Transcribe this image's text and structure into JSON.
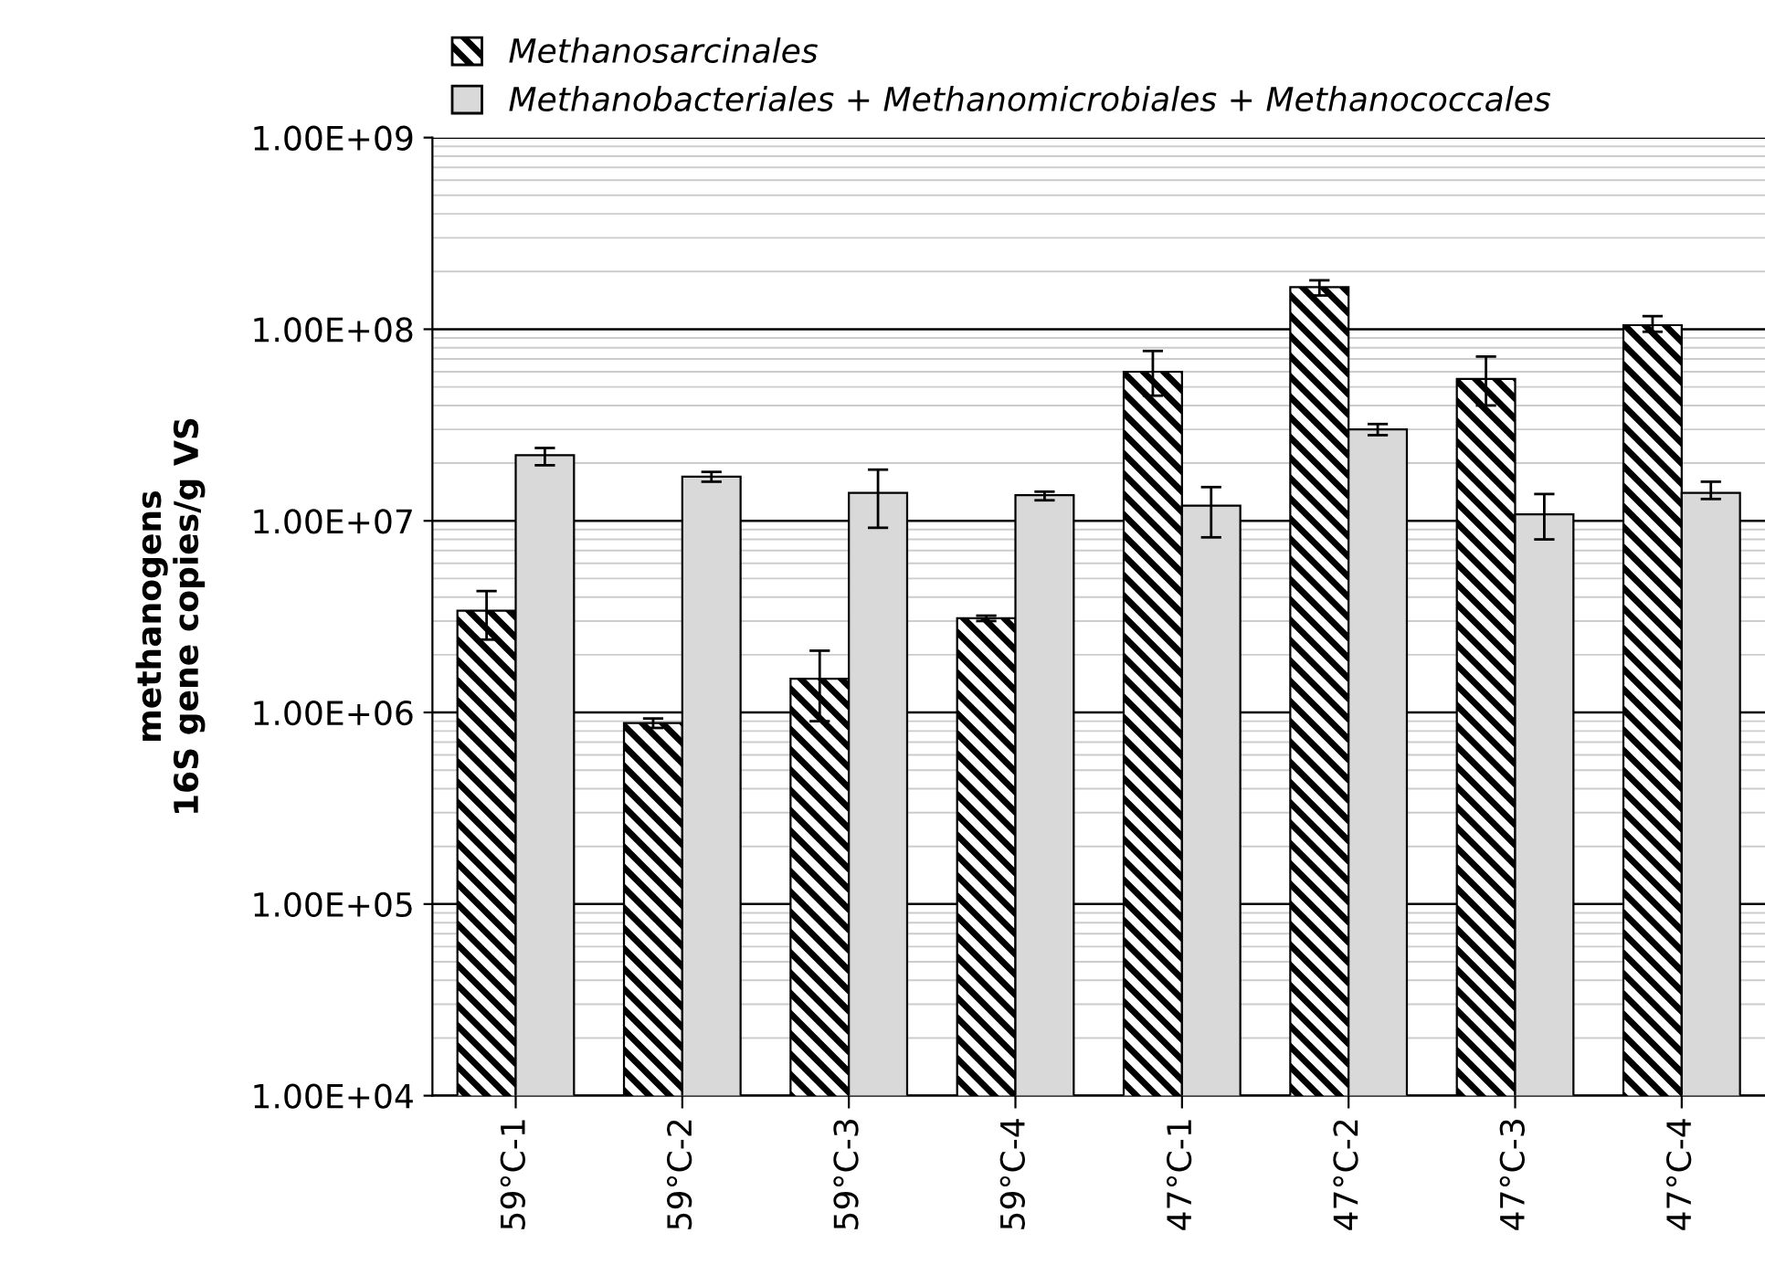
{
  "chart_data": {
    "type": "bar",
    "ylabel": "methanogens\n16S gene copies/g VS",
    "categories": [
      "59°C-1",
      "59°C-2",
      "59°C-3",
      "59°C-4",
      "47°C-1",
      "47°C-2",
      "47°C-3",
      "47°C-4"
    ],
    "series": [
      {
        "name": "Methanosarcinales",
        "color": "#000000",
        "values": [
          3400000.0,
          880000.0,
          1500000.0,
          3100000.0,
          60000000.0,
          166000000.0,
          55000000.0,
          105000000.0
        ],
        "errors": [
          [
            2400000.0,
            4300000.0
          ],
          [
            830000.0,
            930000.0
          ],
          [
            900000.0,
            2100000.0
          ],
          [
            3000000.0,
            3200000.0
          ],
          [
            45000000.0,
            77000000.0
          ],
          [
            150000000.0,
            180000000.0
          ],
          [
            40000000.0,
            72000000.0
          ],
          [
            97000000.0,
            117000000.0
          ]
        ]
      },
      {
        "name": "Methanobacteriales + Methanomicrobiales + Methanococcales",
        "color": "#d9d9d9",
        "values": [
          22000000.0,
          17000000.0,
          14000000.0,
          13600000.0,
          12000000.0,
          30000000.0,
          10800000.0,
          14000000.0
        ],
        "errors": [
          [
            19500000.0,
            24000000.0
          ],
          [
            16000000.0,
            18000000.0
          ],
          [
            9200000.0,
            18500000.0
          ],
          [
            12800000.0,
            14200000.0
          ],
          [
            8200000.0,
            15000000.0
          ],
          [
            28000000.0,
            32000000.0
          ],
          [
            8000000.0,
            13800000.0
          ],
          [
            13000000.0,
            16000000.0
          ]
        ]
      }
    ],
    "log": "y",
    "ylim": [
      10000.0,
      1000000000.0
    ],
    "yticks": [
      {
        "value": 10000.0,
        "label": "1.00E+04"
      },
      {
        "value": 100000.0,
        "label": "1.00E+05"
      },
      {
        "value": 1000000.0,
        "label": "1.00E+06"
      },
      {
        "value": 10000000.0,
        "label": "1.00E+07"
      },
      {
        "value": 100000000.0,
        "label": "1.00E+08"
      },
      {
        "value": 1000000000.0,
        "label": "1.00E+09"
      }
    ],
    "grid": "y",
    "legend": "top"
  }
}
